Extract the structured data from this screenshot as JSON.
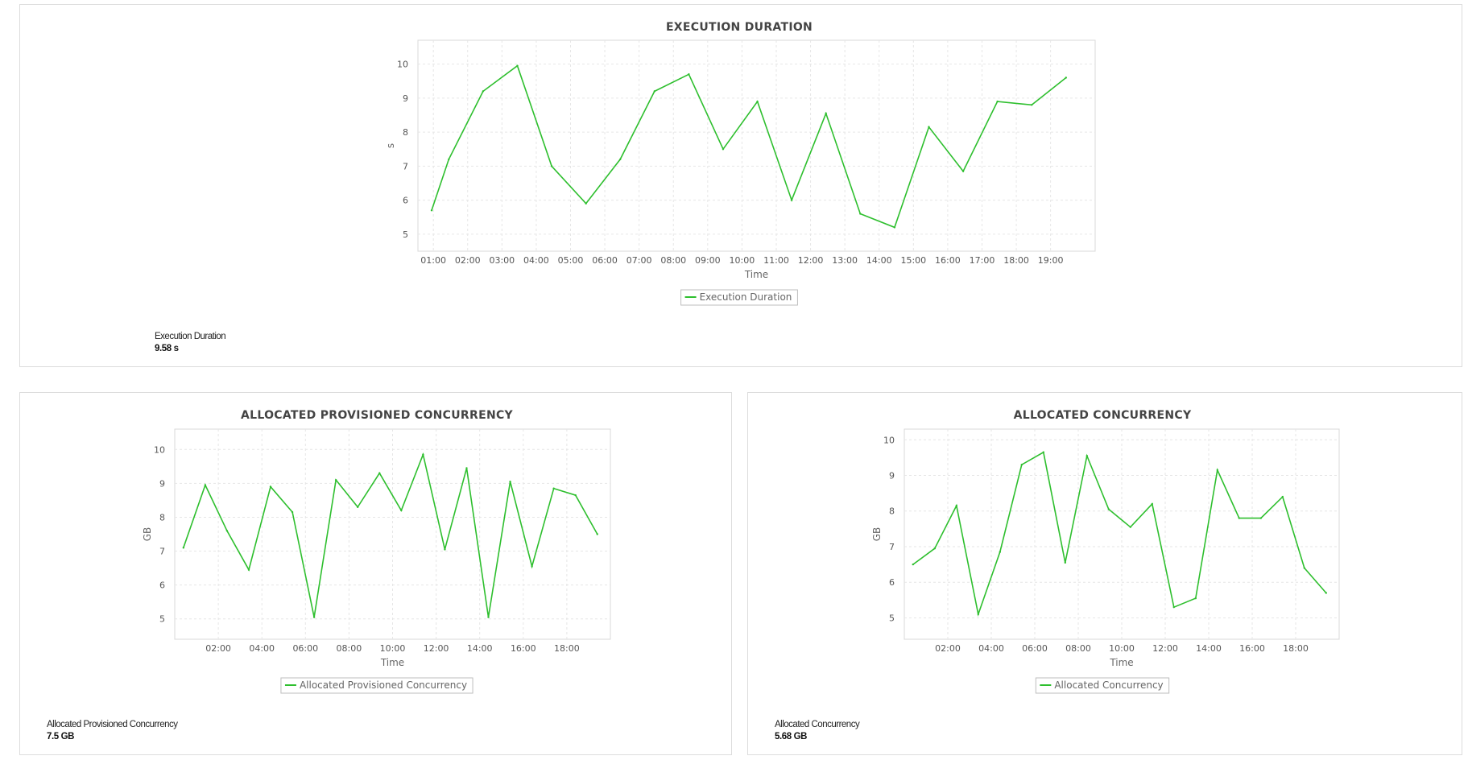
{
  "colors": {
    "series": "#2ebf2e",
    "grid": "#e6e6e6",
    "border": "#dcdcdc"
  },
  "panels": {
    "execution_duration": {
      "summary_label": "Execution Duration",
      "summary_value": "9.58 s"
    },
    "allocated_provisioned_concurrency": {
      "summary_label": "Allocated Provisioned Concurrency",
      "summary_value": "7.5 GB"
    },
    "allocated_concurrency": {
      "summary_label": "Allocated Concurrency",
      "summary_value": "5.68 GB"
    }
  },
  "chart_data": [
    {
      "id": "execution_duration",
      "type": "line",
      "title": "EXECUTION DURATION",
      "xlabel": "Time",
      "ylabel": "s",
      "xlim": [
        0.55,
        20.3
      ],
      "ylim": [
        4.5,
        10.7
      ],
      "x_ticks": [
        1,
        2,
        3,
        4,
        5,
        6,
        7,
        8,
        9,
        10,
        11,
        12,
        13,
        14,
        15,
        16,
        17,
        18,
        19
      ],
      "x_tick_labels": [
        "01:00",
        "02:00",
        "03:00",
        "04:00",
        "05:00",
        "06:00",
        "07:00",
        "08:00",
        "09:00",
        "10:00",
        "11:00",
        "12:00",
        "13:00",
        "14:00",
        "15:00",
        "16:00",
        "17:00",
        "18:00",
        "19:00"
      ],
      "y_ticks": [
        5,
        6,
        7,
        8,
        9,
        10
      ],
      "grid": true,
      "legend_position": "bottom-center",
      "series": [
        {
          "name": "Execution Duration",
          "x": [
            0.95,
            1.45,
            2.45,
            3.45,
            4.45,
            5.45,
            6.45,
            7.45,
            8.45,
            9.45,
            10.45,
            11.45,
            12.45,
            13.45,
            14.45,
            15.45,
            16.45,
            17.45,
            18.45,
            19.45
          ],
          "y": [
            5.7,
            7.2,
            9.2,
            9.95,
            7.0,
            5.9,
            7.2,
            9.2,
            9.7,
            7.5,
            8.9,
            6.0,
            8.55,
            5.6,
            5.2,
            8.15,
            6.85,
            8.9,
            8.8,
            9.6
          ]
        }
      ]
    },
    {
      "id": "allocated_provisioned_concurrency",
      "type": "line",
      "title": "ALLOCATED PROVISIONED CONCURRENCY",
      "xlabel": "Time",
      "ylabel": "GB",
      "xlim": [
        0.0,
        20.0
      ],
      "ylim": [
        4.4,
        10.6
      ],
      "x_ticks": [
        2,
        4,
        6,
        8,
        10,
        12,
        14,
        16,
        18
      ],
      "x_tick_labels": [
        "02:00",
        "04:00",
        "06:00",
        "08:00",
        "10:00",
        "12:00",
        "14:00",
        "16:00",
        "18:00"
      ],
      "y_ticks": [
        5,
        6,
        7,
        8,
        9,
        10
      ],
      "grid": true,
      "legend_position": "bottom-center",
      "series": [
        {
          "name": "Allocated Provisioned Concurrency",
          "x": [
            0.4,
            1.4,
            2.4,
            3.4,
            4.4,
            5.4,
            6.4,
            7.4,
            8.4,
            9.4,
            10.4,
            11.4,
            12.4,
            13.4,
            14.4,
            15.4,
            16.4,
            17.4,
            18.4,
            19.4
          ],
          "y": [
            7.1,
            8.95,
            7.6,
            6.45,
            8.9,
            8.15,
            5.05,
            9.1,
            8.3,
            9.3,
            8.2,
            9.85,
            7.05,
            9.45,
            5.05,
            9.05,
            6.55,
            8.85,
            8.65,
            7.5
          ]
        }
      ]
    },
    {
      "id": "allocated_concurrency",
      "type": "line",
      "title": "ALLOCATED CONCURRENCY",
      "xlabel": "Time",
      "ylabel": "GB",
      "xlim": [
        0.0,
        20.0
      ],
      "ylim": [
        4.4,
        10.3
      ],
      "x_ticks": [
        2,
        4,
        6,
        8,
        10,
        12,
        14,
        16,
        18
      ],
      "x_tick_labels": [
        "02:00",
        "04:00",
        "06:00",
        "08:00",
        "10:00",
        "12:00",
        "14:00",
        "16:00",
        "18:00"
      ],
      "y_ticks": [
        5,
        6,
        7,
        8,
        9,
        10
      ],
      "grid": true,
      "legend_position": "bottom-center",
      "series": [
        {
          "name": "Allocated Concurrency",
          "x": [
            0.4,
            1.4,
            2.4,
            3.4,
            4.4,
            5.4,
            6.4,
            7.4,
            8.4,
            9.4,
            10.4,
            11.4,
            12.4,
            13.4,
            14.4,
            15.4,
            16.4,
            17.4,
            18.4,
            19.4
          ],
          "y": [
            6.5,
            6.95,
            8.15,
            5.1,
            6.85,
            9.3,
            9.65,
            6.55,
            9.55,
            8.05,
            7.55,
            8.2,
            5.3,
            5.55,
            9.15,
            7.8,
            7.8,
            8.4,
            6.4,
            5.7
          ]
        }
      ]
    }
  ]
}
